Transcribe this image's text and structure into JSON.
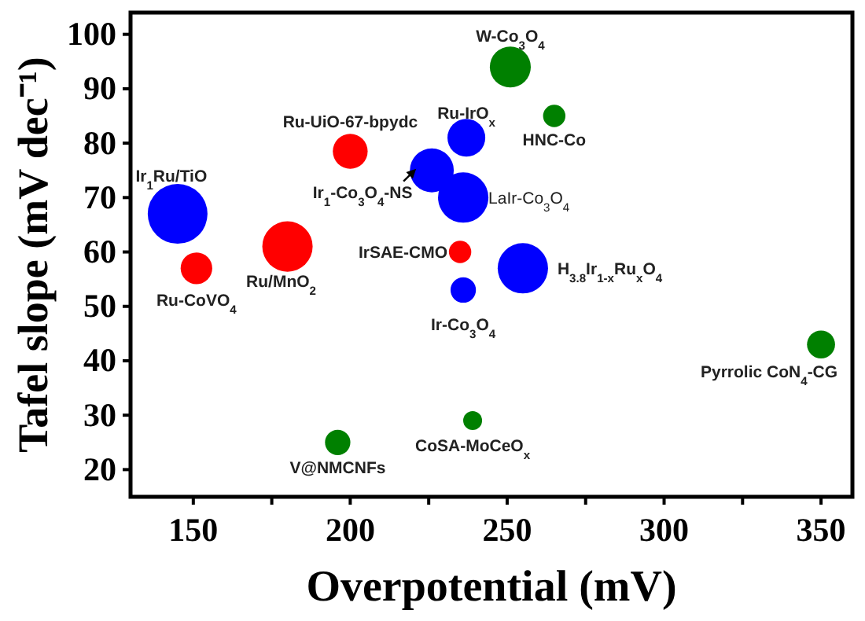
{
  "chart_data": {
    "type": "bubble",
    "xlabel": "Overpotential (mV)",
    "ylabel": "Tafel slope (mV dec⁻¹)",
    "xlim": [
      130,
      360
    ],
    "xticks": [
      150,
      {
        "value": 175,
        "label": null
      },
      200,
      {
        "value": 225,
        "label": null
      },
      250,
      {
        "value": 275,
        "label": null
      },
      300,
      {
        "value": 325,
        "label": null
      },
      350
    ],
    "ylim": [
      15,
      104
    ],
    "yticks": [
      20,
      30,
      40,
      50,
      60,
      70,
      80,
      90,
      100
    ],
    "grid": false,
    "series": [
      {
        "color": "#ff0000",
        "x": [
          151,
          180,
          200,
          235
        ],
        "values": [
          57,
          61,
          78.5,
          60
        ],
        "sizes": [
          0.28,
          0.71,
          0.34,
          0.14
        ]
      },
      {
        "color": "#0000ff",
        "x": [
          145,
          226,
          236,
          237,
          236,
          255
        ],
        "values": [
          67,
          75,
          70,
          81,
          53,
          57
        ],
        "sizes": [
          1,
          0.54,
          0.71,
          0.4,
          0.18,
          0.71
        ]
      },
      {
        "color": "#008000",
        "x": [
          251,
          265,
          350,
          196,
          239
        ],
        "values": [
          94,
          85,
          43,
          25,
          29
        ],
        "sizes": [
          0.47,
          0.14,
          0.22,
          0.18,
          0.1
        ]
      }
    ],
    "annotations": [
      {
        "text": "Ru-CoVO$_{4}$",
        "x": 151,
        "y": 57
      },
      {
        "text": "Ru/MnO$_{2}$",
        "x": 180,
        "y": 61
      },
      {
        "text": "Ru-UiO-67-bpydc",
        "x": 200,
        "y": 78.5
      },
      {
        "text": "IrSAE-CMO",
        "x": 235,
        "y": 60
      },
      {
        "text": "Ir$_{1}$Ru/TiO",
        "x": 145,
        "y": 67
      },
      {
        "text": "Ir$_{1}$-Co$_{3}$O$_{4}$-NS",
        "x": 226,
        "y": 75
      },
      {
        "text": "LaIr-Co$_{3}$O$_{4}$",
        "x": 236,
        "y": 70
      },
      {
        "text": "Ru-IrO$_{x}$",
        "x": 237,
        "y": 81
      },
      {
        "text": "Ir-Co$_{3}$O$_{4}$",
        "x": 236,
        "y": 53
      },
      {
        "text": "H$_{3.8}$Ir$_{1-x}$Ru$_{x}$O$_{4}$",
        "x": 255,
        "y": 57
      },
      {
        "text": "W-Co$_{3}$O$_{4}$",
        "x": 251,
        "y": 94
      },
      {
        "text": "HNC-Co",
        "x": 265,
        "y": 85
      },
      {
        "text": "Pyrrolic CoN$_{4}$-CG",
        "x": 350,
        "y": 43
      },
      {
        "text": "V@NMCNFs",
        "x": 196,
        "y": 25
      },
      {
        "text": "CoSA-MoCeO$_{x}$",
        "x": 239,
        "y": 29
      }
    ]
  }
}
